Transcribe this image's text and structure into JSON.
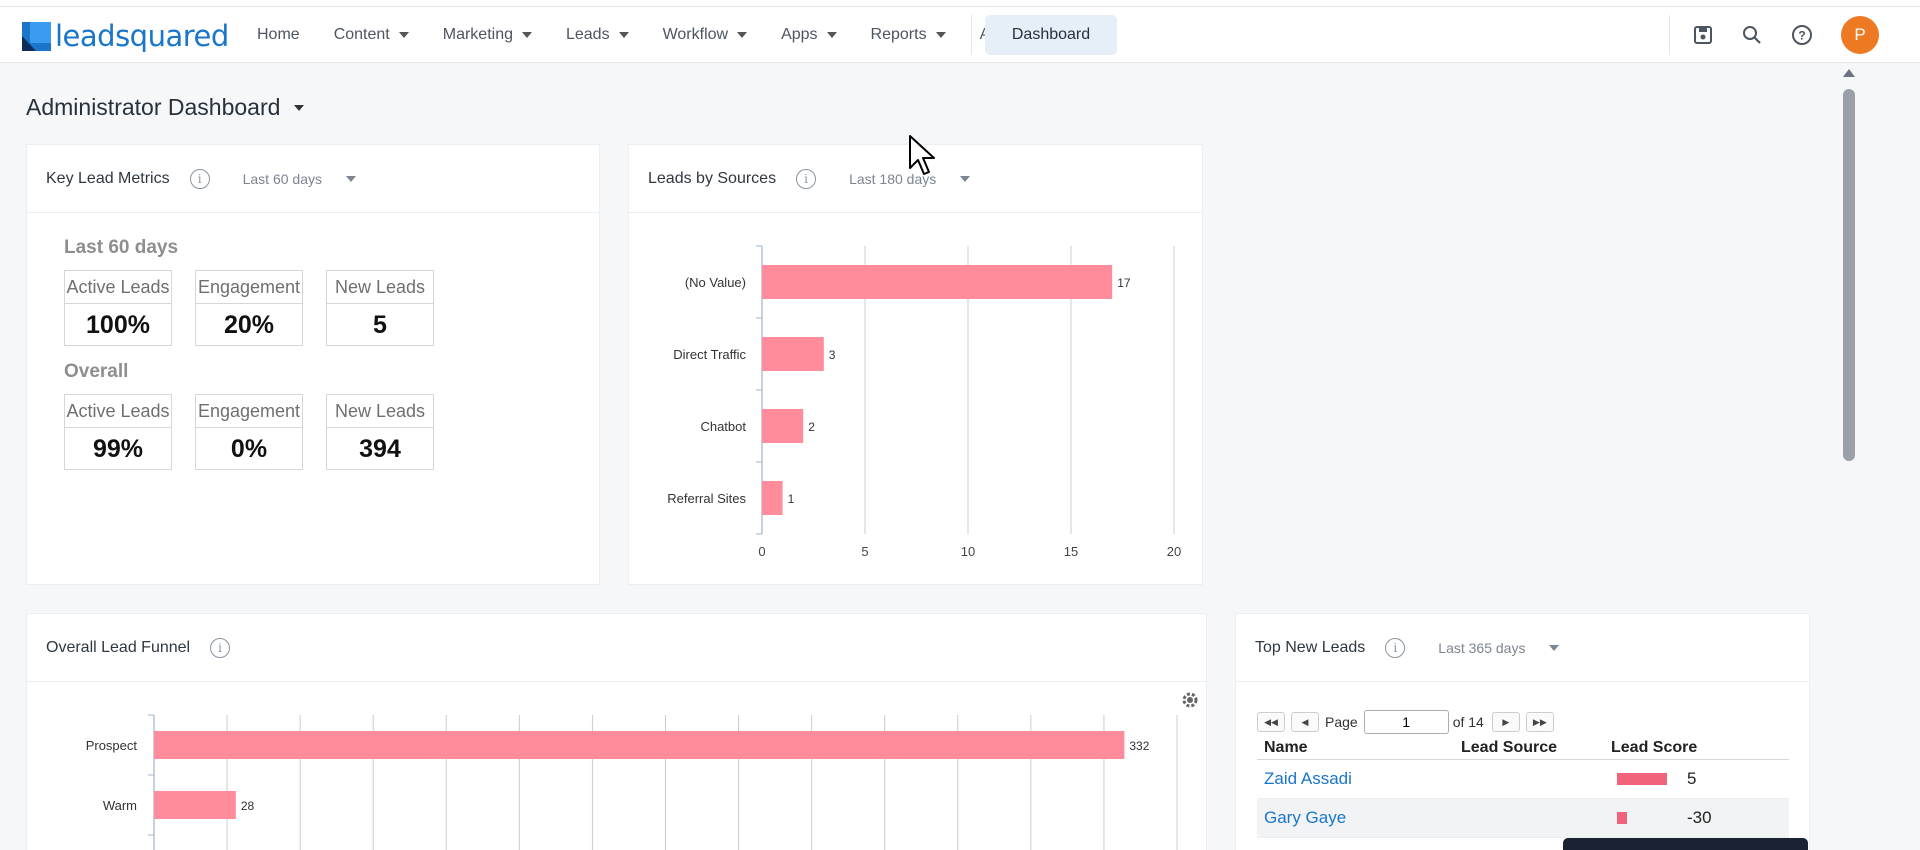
{
  "brand": {
    "name": "leadsquared"
  },
  "nav": {
    "items": [
      {
        "label": "Home",
        "dropdown": false
      },
      {
        "label": "Content",
        "dropdown": true
      },
      {
        "label": "Marketing",
        "dropdown": true
      },
      {
        "label": "Leads",
        "dropdown": true
      },
      {
        "label": "Workflow",
        "dropdown": true
      },
      {
        "label": "Apps",
        "dropdown": true
      },
      {
        "label": "Reports",
        "dropdown": true
      },
      {
        "label": "Ace",
        "dropdown": false
      }
    ],
    "active": "Dashboard",
    "icons": [
      "save-icon",
      "search-icon",
      "help-icon"
    ],
    "avatar_initial": "P"
  },
  "page": {
    "title": "Administrator Dashboard"
  },
  "key_metrics": {
    "title": "Key Lead Metrics",
    "range": "Last 60 days",
    "sections": [
      {
        "heading": "Last 60 days",
        "metrics": [
          {
            "label": "Active Leads",
            "value": "100%"
          },
          {
            "label": "Engagement",
            "value": "20%"
          },
          {
            "label": "New Leads",
            "value": "5"
          }
        ]
      },
      {
        "heading": "Overall",
        "metrics": [
          {
            "label": "Active Leads",
            "value": "99%"
          },
          {
            "label": "Engagement",
            "value": "0%"
          },
          {
            "label": "New Leads",
            "value": "394"
          }
        ]
      }
    ]
  },
  "sources": {
    "title": "Leads by Sources",
    "range": "Last 180 days"
  },
  "funnel": {
    "title": "Overall Lead Funnel"
  },
  "top_leads": {
    "title": "Top New Leads",
    "range": "Last 365 days",
    "pager": {
      "page_label": "Page",
      "page": "1",
      "of_label": "of 14"
    },
    "columns": [
      "Name",
      "Lead Source",
      "Lead Score"
    ],
    "rows": [
      {
        "name": "Zaid Assadi",
        "source": "",
        "score": "5",
        "score_value": 5
      },
      {
        "name": "Gary Gaye",
        "source": "",
        "score": "-30",
        "score_value": -30
      }
    ]
  },
  "colors": {
    "bar": "#ff8c9b",
    "accent": "#1a76c9",
    "avatar": "#ed7a23"
  },
  "chart_data": [
    {
      "type": "bar",
      "orientation": "horizontal",
      "categories": [
        "(No Value)",
        "Direct Traffic",
        "Chatbot",
        "Referral Sites"
      ],
      "values": [
        17,
        3,
        2,
        1
      ],
      "xlim": [
        0,
        20
      ],
      "xticks": [
        0,
        5,
        10,
        15,
        20
      ],
      "grid": true,
      "data_labels": true
    },
    {
      "type": "bar",
      "orientation": "horizontal",
      "categories": [
        "Prospect",
        "Warm"
      ],
      "values": [
        332,
        28
      ],
      "xlim": [
        0,
        350
      ],
      "grid": true,
      "data_labels": true
    }
  ]
}
